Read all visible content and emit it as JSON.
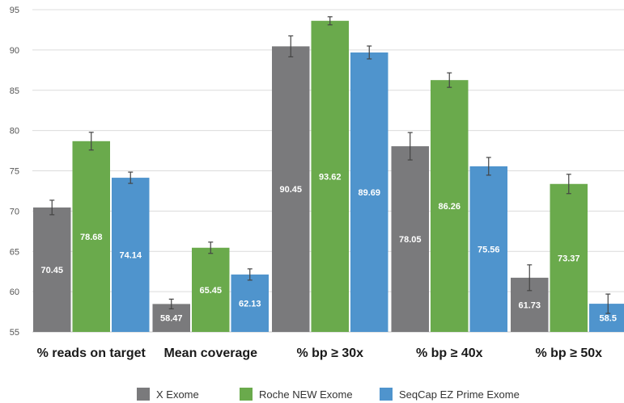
{
  "chart_data": {
    "type": "bar",
    "categories": [
      "% reads on target",
      "Mean coverage",
      "% bp ≥ 30x",
      "% bp ≥ 40x",
      "% bp ≥ 50x"
    ],
    "series": [
      {
        "name": "X Exome",
        "color": "#7a7a7c",
        "values": [
          70.45,
          58.47,
          90.45,
          78.05,
          61.73
        ],
        "labels": [
          "70.45",
          "58.47",
          "90.45",
          "78.05",
          "61.73"
        ],
        "errors": [
          0.9,
          0.6,
          1.3,
          1.7,
          1.6
        ]
      },
      {
        "name": "Roche NEW Exome",
        "color": "#6aaa4c",
        "values": [
          78.68,
          65.45,
          93.62,
          86.26,
          73.37
        ],
        "labels": [
          "78.68",
          "65.45",
          "93.62",
          "86.26",
          "73.37"
        ],
        "errors": [
          1.1,
          0.7,
          0.5,
          0.9,
          1.2
        ]
      },
      {
        "name": "SeqCap EZ Prime Exome",
        "color": "#4f94cd",
        "values": [
          74.14,
          62.13,
          89.69,
          75.56,
          58.5
        ],
        "labels": [
          "74.14",
          "62.13",
          "89.69",
          "75.56",
          "58.5"
        ],
        "errors": [
          0.7,
          0.7,
          0.8,
          1.1,
          1.2
        ]
      }
    ],
    "ylim": [
      55,
      95
    ],
    "yticks": [
      "55",
      "60",
      "65",
      "70",
      "75",
      "80",
      "85",
      "90",
      "95"
    ],
    "grid": true,
    "legend_position": "bottom",
    "title": "",
    "xlabel": "",
    "ylabel": ""
  }
}
